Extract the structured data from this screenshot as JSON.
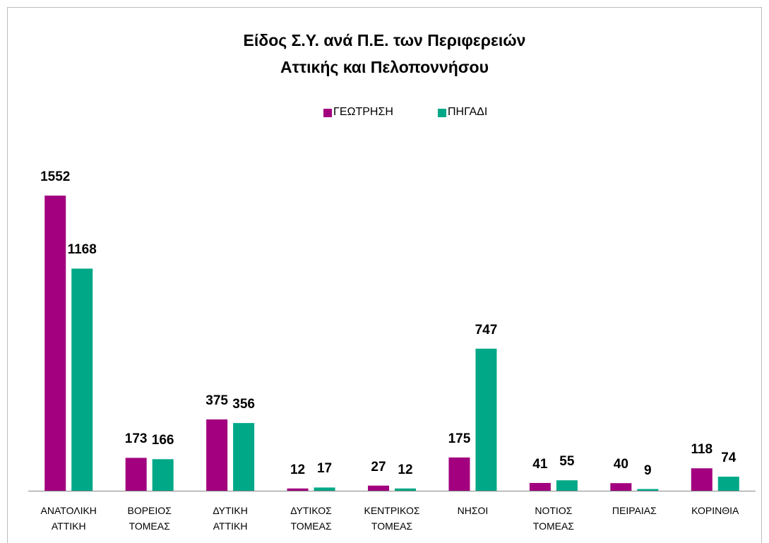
{
  "chart_data": {
    "type": "bar",
    "title": "Είδος Σ.Υ. ανά Π.Ε.  των Περιφερειών\nΑττικής και Πελοποννήσου",
    "categories": [
      "ΑΝΑΤΟΛΙΚΗ\nΑΤΤΙΚΗ",
      "ΒΟΡΕΙΟΣ\nΤΟΜΕΑΣ",
      "ΔΥΤΙΚΗ\nΑΤΤΙΚΗ",
      "ΔΥΤΙΚΟΣ\nΤΟΜΕΑΣ",
      "ΚΕΝΤΡΙΚΟΣ\nΤΟΜΕΑΣ",
      "ΝΗΣΟΙ",
      "ΝΟΤΙΟΣ\nΤΟΜΕΑΣ",
      "ΠΕΙΡΑΙΑΣ",
      "ΚΟΡΙΝΘΙΑ"
    ],
    "series": [
      {
        "name": "ΓΕΩΤΡΗΣΗ",
        "color": "#a2007f",
        "values": [
          1552,
          173,
          375,
          12,
          27,
          175,
          41,
          40,
          118
        ]
      },
      {
        "name": "ΠΗΓΑΔΙ",
        "color": "#00a887",
        "values": [
          1168,
          166,
          356,
          17,
          12,
          747,
          55,
          9,
          74
        ]
      }
    ],
    "legend": "top"
  }
}
